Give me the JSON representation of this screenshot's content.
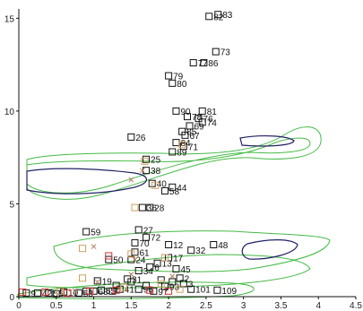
{
  "chart_data": {
    "type": "scatter",
    "xlim": [
      0,
      4.5
    ],
    "ylim": [
      0,
      15.5
    ],
    "x_ticks": [
      "0",
      "0.5",
      "1",
      "1.5",
      "2",
      "2.5",
      "3",
      "3.5",
      "4",
      "4.5"
    ],
    "y_ticks": [
      "0",
      "5",
      "10",
      "15"
    ],
    "grid": false,
    "legend": "none",
    "colors": {
      "black": "#111111",
      "orange": "#d0a060",
      "red": "#cc3333",
      "contour_green": "#44bb44",
      "contour_blue": "#222266",
      "cross": "#b08060"
    },
    "series": [
      {
        "marker": "square",
        "color": "#111111",
        "points": [
          {
            "x": 2.54,
            "y": 15.1,
            "label": "82"
          },
          {
            "x": 2.66,
            "y": 15.2,
            "label": "83"
          },
          {
            "x": 2.63,
            "y": 13.2,
            "label": "73"
          },
          {
            "x": 2.33,
            "y": 12.6,
            "label": "77"
          },
          {
            "x": 2.47,
            "y": 12.6,
            "label": "86"
          },
          {
            "x": 2.0,
            "y": 11.9,
            "label": "79"
          },
          {
            "x": 2.05,
            "y": 11.5,
            "label": "80"
          },
          {
            "x": 2.1,
            "y": 10.0,
            "label": "90"
          },
          {
            "x": 2.45,
            "y": 10.0,
            "label": "81"
          },
          {
            "x": 2.25,
            "y": 9.7,
            "label": "78"
          },
          {
            "x": 2.4,
            "y": 9.6,
            "label": "76"
          },
          {
            "x": 2.45,
            "y": 9.4,
            "label": "74"
          },
          {
            "x": 2.28,
            "y": 9.2,
            "label": "69"
          },
          {
            "x": 2.18,
            "y": 8.9,
            "label": "85"
          },
          {
            "x": 2.22,
            "y": 8.7,
            "label": "67"
          },
          {
            "x": 1.5,
            "y": 8.6,
            "label": "26"
          },
          {
            "x": 2.1,
            "y": 8.3,
            "label": "84"
          },
          {
            "x": 2.2,
            "y": 8.1,
            "label": "71"
          },
          {
            "x": 2.05,
            "y": 7.8,
            "label": "89"
          },
          {
            "x": 1.7,
            "y": 7.4,
            "label": "25"
          },
          {
            "x": 1.7,
            "y": 6.8,
            "label": "38"
          },
          {
            "x": 1.78,
            "y": 6.1,
            "label": "40"
          },
          {
            "x": 2.05,
            "y": 5.9,
            "label": "44"
          },
          {
            "x": 1.95,
            "y": 5.7,
            "label": "58"
          },
          {
            "x": 1.65,
            "y": 4.8,
            "label": "36"
          },
          {
            "x": 1.75,
            "y": 4.8,
            "label": "28"
          },
          {
            "x": 1.6,
            "y": 3.6,
            "label": "27"
          },
          {
            "x": 0.9,
            "y": 3.5,
            "label": "59"
          },
          {
            "x": 1.7,
            "y": 3.2,
            "label": "72"
          },
          {
            "x": 1.55,
            "y": 2.9,
            "label": "70"
          },
          {
            "x": 2.0,
            "y": 2.8,
            "label": "12"
          },
          {
            "x": 2.6,
            "y": 2.8,
            "label": "48"
          },
          {
            "x": 2.3,
            "y": 2.5,
            "label": "32"
          },
          {
            "x": 1.55,
            "y": 2.4,
            "label": "61"
          },
          {
            "x": 2.0,
            "y": 2.1,
            "label": "17"
          },
          {
            "x": 1.2,
            "y": 2.0,
            "label": "50"
          },
          {
            "x": 1.5,
            "y": 2.0,
            "label": "24"
          },
          {
            "x": 1.85,
            "y": 1.8,
            "label": "13"
          },
          {
            "x": 1.75,
            "y": 1.6,
            "label": "6"
          },
          {
            "x": 2.1,
            "y": 1.5,
            "label": "45"
          },
          {
            "x": 1.6,
            "y": 1.4,
            "label": "34"
          },
          {
            "x": 2.15,
            "y": 1.0,
            "label": "2"
          },
          {
            "x": 1.45,
            "y": 0.95,
            "label": "31"
          },
          {
            "x": 1.05,
            "y": 0.85,
            "label": "19"
          },
          {
            "x": 2.2,
            "y": 0.7,
            "label": "3"
          },
          {
            "x": 2.65,
            "y": 0.35,
            "label": "109"
          },
          {
            "x": 2.3,
            "y": 0.4,
            "label": "101"
          },
          {
            "x": 1.95,
            "y": 0.55,
            "label": "93"
          },
          {
            "x": 1.8,
            "y": 0.3,
            "label": "97"
          },
          {
            "x": 1.6,
            "y": 0.4,
            "label": "96"
          },
          {
            "x": 1.35,
            "y": 0.4,
            "label": "41"
          },
          {
            "x": 1.1,
            "y": 0.35,
            "label": "55"
          },
          {
            "x": 1.0,
            "y": 0.3,
            "label": "68"
          },
          {
            "x": 0.8,
            "y": 0.2,
            "label": "53"
          },
          {
            "x": 0.6,
            "y": 0.25,
            "label": "10"
          },
          {
            "x": 0.4,
            "y": 0.2,
            "label": "56"
          },
          {
            "x": 0.25,
            "y": 0.2,
            "label": "42"
          },
          {
            "x": 0.1,
            "y": 0.2,
            "label": "9"
          },
          {
            "x": 1.5,
            "y": 0.8,
            "label": ""
          },
          {
            "x": 1.9,
            "y": 0.9,
            "label": ""
          },
          {
            "x": 1.7,
            "y": 0.6,
            "label": ""
          },
          {
            "x": 1.3,
            "y": 0.6,
            "label": ""
          },
          {
            "x": 2.05,
            "y": 0.8,
            "label": ""
          },
          {
            "x": 1.25,
            "y": 0.3,
            "label": ""
          },
          {
            "x": 0.9,
            "y": 0.3,
            "label": ""
          },
          {
            "x": 0.5,
            "y": 0.15,
            "label": ""
          }
        ]
      },
      {
        "marker": "square",
        "color": "#d0a060",
        "points": [
          {
            "x": 1.68,
            "y": 7.3
          },
          {
            "x": 2.18,
            "y": 8.2
          },
          {
            "x": 1.82,
            "y": 6.0
          },
          {
            "x": 1.55,
            "y": 4.8
          },
          {
            "x": 0.85,
            "y": 2.6
          },
          {
            "x": 1.5,
            "y": 2.3
          },
          {
            "x": 1.95,
            "y": 2.1
          },
          {
            "x": 0.85,
            "y": 1.0
          },
          {
            "x": 1.9,
            "y": 0.7
          },
          {
            "x": 0.55,
            "y": 0.3
          },
          {
            "x": 1.4,
            "y": 0.5
          },
          {
            "x": 2.15,
            "y": 0.4
          }
        ]
      },
      {
        "marker": "square",
        "color": "#cc3333",
        "points": [
          {
            "x": 1.2,
            "y": 2.2
          },
          {
            "x": 1.3,
            "y": 0.35
          },
          {
            "x": 0.35,
            "y": 0.25
          },
          {
            "x": 0.05,
            "y": 0.25
          },
          {
            "x": 0.95,
            "y": 0.3
          },
          {
            "x": 1.75,
            "y": 0.35
          },
          {
            "x": 0.65,
            "y": 0.2
          },
          {
            "x": 2.0,
            "y": 0.3
          }
        ]
      },
      {
        "marker": "cross",
        "color": "#b08060",
        "points": [
          {
            "x": 1.5,
            "y": 6.3
          },
          {
            "x": 1.65,
            "y": 6.8
          },
          {
            "x": 1.0,
            "y": 2.7
          },
          {
            "x": 1.55,
            "y": 2.0
          },
          {
            "x": 1.5,
            "y": 1.2
          },
          {
            "x": 1.05,
            "y": 0.8
          },
          {
            "x": 0.75,
            "y": 0.3
          },
          {
            "x": 2.05,
            "y": 1.1
          }
        ]
      }
    ]
  }
}
